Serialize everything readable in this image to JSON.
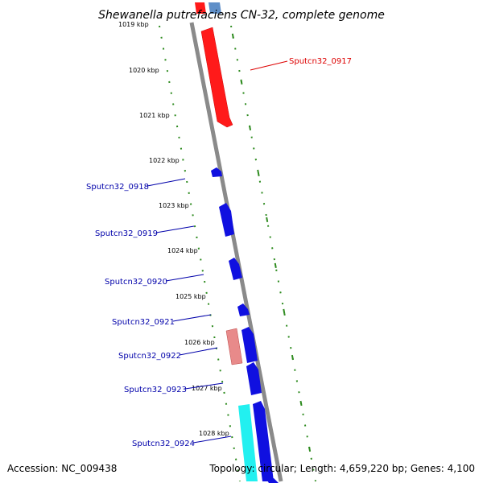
{
  "title": "Shewanella putrefaciens CN-32, complete genome",
  "footer": {
    "accession": "Accession: NC_009438",
    "topology": "Topology: circular; Length: 4,659,220 bp; Genes: 4,100"
  },
  "kbp_labels": [
    "1019 kbp",
    "1020 kbp",
    "1021 kbp",
    "1022 kbp",
    "1023 kbp",
    "1024 kbp",
    "1025 kbp",
    "1026 kbp",
    "1027 kbp",
    "1028 kbp"
  ],
  "genes": [
    {
      "label": "Sputcn32_0917",
      "color": "#dd0000"
    },
    {
      "label": "Sputcn32_0918",
      "color": "#0000aa"
    },
    {
      "label": "Sputcn32_0919",
      "color": "#0000aa"
    },
    {
      "label": "Sputcn32_0920",
      "color": "#0000aa"
    },
    {
      "label": "Sputcn32_0921",
      "color": "#0000aa"
    },
    {
      "label": "Sputcn32_0922",
      "color": "#0000aa"
    },
    {
      "label": "Sputcn32_0923",
      "color": "#0000aa"
    },
    {
      "label": "Sputcn32_0924",
      "color": "#0000aa"
    }
  ],
  "colors": {
    "backbone": "#8a8a8a",
    "tick": "#2e8b1f",
    "cds_red": "#ff1a1a",
    "cds_pink": "#e88a8a",
    "cds_blue": "#1010e0",
    "cds_lightblue": "#5f8fc8",
    "cds_cyan": "#22f0f0"
  }
}
